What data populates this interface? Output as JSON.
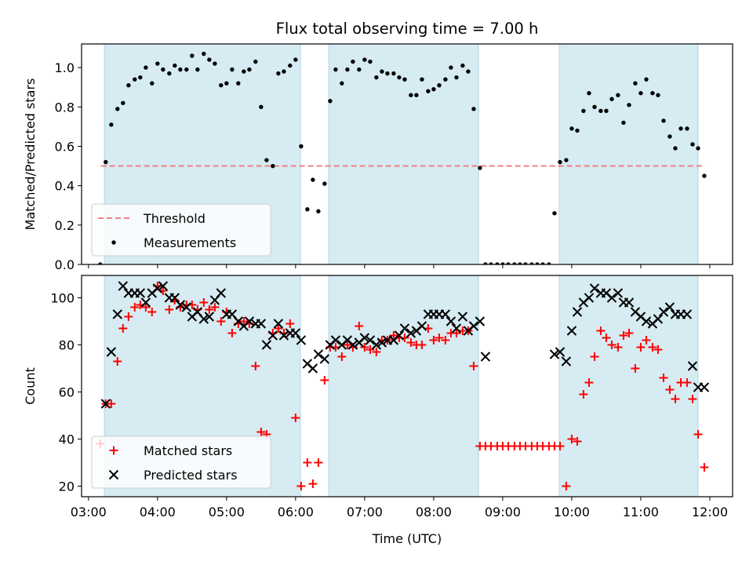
{
  "title": "Flux total observing time = 7.00 h",
  "colors": {
    "band": "#add8e6",
    "threshold": "#f08080",
    "measurement": "#000000",
    "matched": "#ff0000",
    "predicted": "#000000"
  },
  "chart_data": [
    {
      "type": "scatter",
      "ylabel": "Matched/Predicted stars",
      "ylim": [
        0,
        1.12
      ],
      "yticks": [
        "0.0",
        "0.2",
        "0.4",
        "0.6",
        "0.8",
        "1.0"
      ],
      "ytick_values": [
        0,
        0.2,
        0.4,
        0.6,
        0.8,
        1.0
      ],
      "xlim": [
        2.9,
        12.33
      ],
      "shaded_intervals": [
        [
          3.23,
          6.07
        ],
        [
          6.48,
          8.65
        ],
        [
          9.82,
          11.83
        ]
      ],
      "threshold": {
        "name": "Threshold",
        "value": 0.5,
        "x_range": [
          3.18,
          11.93
        ]
      },
      "legend": {
        "position": "lower-left",
        "entries": [
          "Threshold",
          "Measurements"
        ]
      },
      "series": [
        {
          "name": "Measurements",
          "marker": "dot",
          "x": [
            3.17,
            3.25,
            3.33,
            3.42,
            3.5,
            3.58,
            3.67,
            3.75,
            3.83,
            3.92,
            4.0,
            4.08,
            4.17,
            4.25,
            4.33,
            4.42,
            4.5,
            4.58,
            4.67,
            4.75,
            4.83,
            4.92,
            5.0,
            5.08,
            5.17,
            5.25,
            5.33,
            5.42,
            5.5,
            5.58,
            5.67,
            5.75,
            5.83,
            5.92,
            6.0,
            6.08,
            6.17,
            6.25,
            6.33,
            6.42,
            6.5,
            6.58,
            6.67,
            6.75,
            6.83,
            6.92,
            7.0,
            7.08,
            7.17,
            7.25,
            7.33,
            7.42,
            7.5,
            7.58,
            7.67,
            7.75,
            7.83,
            7.92,
            8.0,
            8.08,
            8.17,
            8.25,
            8.33,
            8.42,
            8.5,
            8.58,
            8.67,
            8.75,
            8.83,
            8.92,
            9.0,
            9.08,
            9.17,
            9.25,
            9.33,
            9.42,
            9.5,
            9.58,
            9.67,
            9.75,
            9.83,
            9.92,
            10.0,
            10.08,
            10.17,
            10.25,
            10.33,
            10.42,
            10.5,
            10.58,
            10.67,
            10.75,
            10.83,
            10.92,
            11.0,
            11.08,
            11.17,
            11.25,
            11.33,
            11.42,
            11.5,
            11.58,
            11.67,
            11.75,
            11.83,
            11.92
          ],
          "y": [
            0,
            0.52,
            0.71,
            0.79,
            0.82,
            0.91,
            0.94,
            0.95,
            1.0,
            0.92,
            1.02,
            0.99,
            0.97,
            1.01,
            0.99,
            0.99,
            1.06,
            0.99,
            1.07,
            1.04,
            1.02,
            0.91,
            0.92,
            0.99,
            0.92,
            0.98,
            0.99,
            1.03,
            0.8,
            0.53,
            0.5,
            0.97,
            0.98,
            1.01,
            1.04,
            0.6,
            0.28,
            0.43,
            0.27,
            0.41,
            0.83,
            0.99,
            0.92,
            0.99,
            1.03,
            0.99,
            1.04,
            1.03,
            0.95,
            0.98,
            0.97,
            0.97,
            0.95,
            0.94,
            0.86,
            0.86,
            0.94,
            0.88,
            0.89,
            0.91,
            0.94,
            1.0,
            0.95,
            1.01,
            0.98,
            0.79,
            0.49,
            0,
            0,
            0,
            0,
            0,
            0,
            0,
            0,
            0,
            0,
            0,
            0,
            0.26,
            0.52,
            0.53,
            0.69,
            0.68,
            0.78,
            0.87,
            0.8,
            0.78,
            0.78,
            0.84,
            0.86,
            0.72,
            0.81,
            0.92,
            0.87,
            0.94,
            0.87,
            0.86,
            0.73,
            0.65,
            0.59,
            0.69,
            0.69,
            0.61,
            0.59,
            0.45
          ]
        }
      ]
    },
    {
      "type": "scatter",
      "xlabel": "Time (UTC)",
      "ylabel": "Count",
      "ylim": [
        15.5,
        109.5
      ],
      "yticks": [
        "20",
        "40",
        "60",
        "80",
        "100"
      ],
      "ytick_values": [
        20,
        40,
        60,
        80,
        100
      ],
      "xlim": [
        2.9,
        12.33
      ],
      "xticks": [
        "03:00",
        "04:00",
        "05:00",
        "06:00",
        "07:00",
        "08:00",
        "09:00",
        "10:00",
        "11:00",
        "12:00"
      ],
      "xtick_values": [
        3,
        4,
        5,
        6,
        7,
        8,
        9,
        10,
        11,
        12
      ],
      "shaded_intervals": [
        [
          3.23,
          6.07
        ],
        [
          6.48,
          8.65
        ],
        [
          9.82,
          11.83
        ]
      ],
      "legend": {
        "position": "lower-left",
        "entries": [
          "Matched stars",
          "Predicted stars"
        ]
      },
      "series": [
        {
          "name": "Matched stars",
          "marker": "plus",
          "x": [
            3.17,
            3.25,
            3.33,
            3.42,
            3.5,
            3.58,
            3.67,
            3.75,
            3.83,
            3.92,
            4.0,
            4.08,
            4.17,
            4.25,
            4.33,
            4.42,
            4.5,
            4.58,
            4.67,
            4.75,
            4.83,
            4.92,
            5.0,
            5.08,
            5.17,
            5.25,
            5.33,
            5.42,
            5.5,
            5.58,
            5.67,
            5.75,
            5.83,
            5.92,
            6.0,
            6.08,
            6.17,
            6.25,
            6.33,
            6.42,
            6.5,
            6.58,
            6.67,
            6.75,
            6.83,
            6.92,
            7.0,
            7.08,
            7.17,
            7.25,
            7.33,
            7.42,
            7.5,
            7.58,
            7.67,
            7.75,
            7.83,
            7.92,
            8.0,
            8.08,
            8.17,
            8.25,
            8.33,
            8.42,
            8.5,
            8.58,
            8.67,
            8.75,
            8.83,
            8.92,
            9.0,
            9.08,
            9.17,
            9.25,
            9.33,
            9.42,
            9.5,
            9.58,
            9.67,
            9.75,
            9.83,
            9.92,
            10.0,
            10.08,
            10.17,
            10.25,
            10.33,
            10.42,
            10.5,
            10.58,
            10.67,
            10.75,
            10.83,
            10.92,
            11.0,
            11.08,
            11.17,
            11.25,
            11.33,
            11.42,
            11.5,
            11.58,
            11.67,
            11.75,
            11.83,
            11.92
          ],
          "y": [
            38,
            55,
            55,
            73,
            87,
            92,
            96,
            97,
            96,
            94,
            105,
            103,
            95,
            99,
            96,
            97,
            97,
            95,
            98,
            95,
            96,
            90,
            94,
            85,
            89,
            90,
            89,
            71,
            43,
            42,
            85,
            87,
            85,
            89,
            49,
            20,
            30,
            21,
            30,
            65,
            79,
            79,
            75,
            80,
            79,
            88,
            79,
            78,
            77,
            82,
            82,
            84,
            83,
            83,
            81,
            80,
            80,
            87,
            82,
            83,
            82,
            85,
            85,
            86,
            86,
            71,
            37,
            37,
            37,
            37,
            37,
            37,
            37,
            37,
            37,
            37,
            37,
            37,
            37,
            37,
            37,
            20,
            40,
            39,
            59,
            64,
            75,
            86,
            83,
            80,
            79,
            84,
            85,
            70,
            79,
            82,
            79,
            78,
            66,
            61,
            57,
            64,
            64,
            57,
            42,
            28
          ]
        },
        {
          "name": "Predicted stars",
          "marker": "x",
          "x": [
            3.25,
            3.33,
            3.42,
            3.5,
            3.58,
            3.67,
            3.75,
            3.83,
            3.92,
            4.0,
            4.08,
            4.17,
            4.25,
            4.33,
            4.42,
            4.5,
            4.58,
            4.67,
            4.75,
            4.83,
            4.92,
            5.0,
            5.08,
            5.17,
            5.25,
            5.33,
            5.42,
            5.5,
            5.58,
            5.67,
            5.75,
            5.83,
            5.92,
            6.0,
            6.08,
            6.17,
            6.25,
            6.33,
            6.42,
            6.5,
            6.58,
            6.67,
            6.75,
            6.83,
            6.92,
            7.0,
            7.08,
            7.17,
            7.25,
            7.33,
            7.42,
            7.5,
            7.58,
            7.67,
            7.75,
            7.83,
            7.92,
            8.0,
            8.08,
            8.17,
            8.25,
            8.33,
            8.42,
            8.5,
            8.58,
            8.67,
            8.75,
            9.75,
            9.83,
            9.92,
            10.0,
            10.08,
            10.17,
            10.25,
            10.33,
            10.42,
            10.5,
            10.58,
            10.67,
            10.75,
            10.83,
            10.92,
            11.0,
            11.08,
            11.17,
            11.25,
            11.33,
            11.42,
            11.5,
            11.58,
            11.67,
            11.75,
            11.83,
            11.92
          ],
          "y": [
            55,
            77,
            93,
            105,
            102,
            102,
            102,
            98,
            102,
            104,
            105,
            100,
            100,
            97,
            96,
            92,
            94,
            91,
            92,
            99,
            102,
            93,
            93,
            90,
            88,
            90,
            89,
            89,
            80,
            84,
            89,
            84,
            85,
            85,
            82,
            72,
            70,
            76,
            74,
            80,
            82,
            80,
            82,
            80,
            81,
            83,
            82,
            80,
            81,
            82,
            82,
            84,
            87,
            85,
            86,
            88,
            93,
            93,
            93,
            93,
            90,
            87,
            92,
            86,
            88,
            90,
            75,
            76,
            77,
            73,
            86,
            94,
            98,
            100,
            104,
            102,
            102,
            100,
            102,
            98,
            98,
            94,
            92,
            90,
            89,
            91,
            94,
            96,
            93,
            93,
            93,
            71,
            62,
            62
          ]
        }
      ]
    }
  ]
}
